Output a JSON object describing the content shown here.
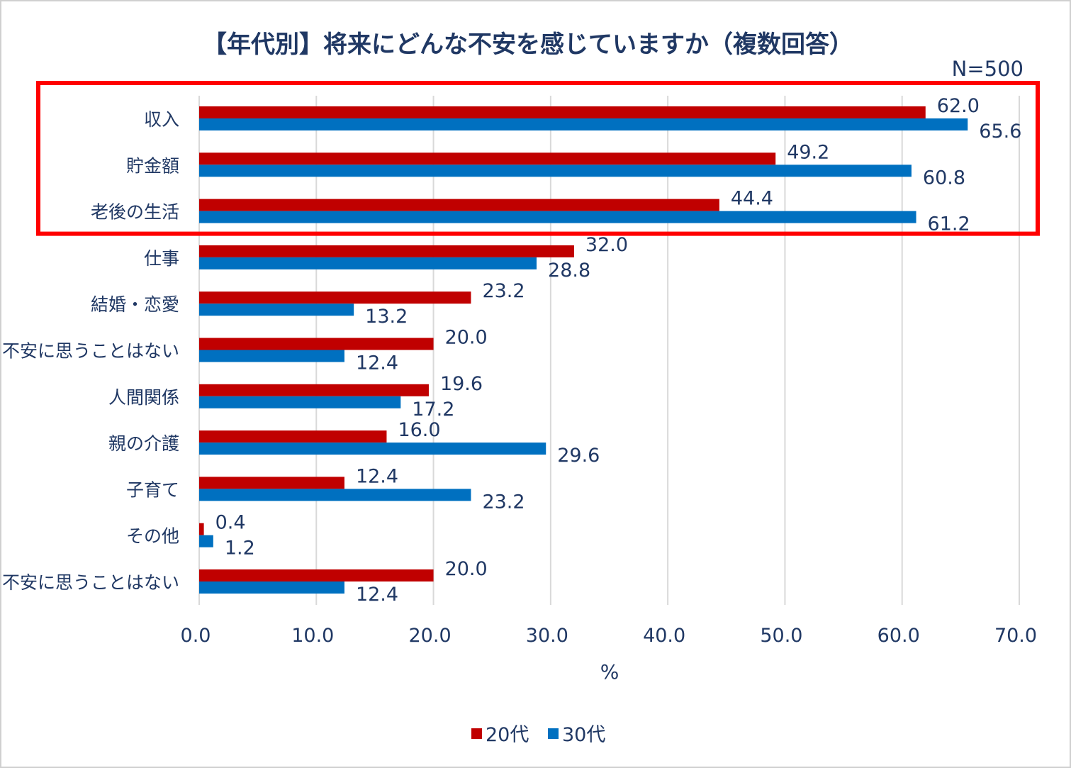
{
  "chart_data": {
    "type": "bar",
    "orientation": "horizontal",
    "title": "【年代別】将来にどんな不安を感じていますか（複数回答）",
    "subtitle": "N=500",
    "xlabel": "%",
    "ylabel": "",
    "xlim": [
      0,
      70
    ],
    "xticks": [
      "0.0",
      "10.0",
      "20.0",
      "30.0",
      "40.0",
      "50.0",
      "60.0",
      "70.0"
    ],
    "grid": true,
    "legend_position": "bottom",
    "categories": [
      "収入",
      "貯金額",
      "老後の生活",
      "仕事",
      "結婚・恋愛",
      "不安に思うことはない",
      "人間関係",
      "親の介護",
      "子育て",
      "その他",
      "不安に思うことはない"
    ],
    "series": [
      {
        "name": "20代",
        "color": "#C00000",
        "values": [
          62.0,
          49.2,
          44.4,
          32.0,
          23.2,
          20.0,
          19.6,
          16.0,
          12.4,
          0.4,
          20.0
        ]
      },
      {
        "name": "30代",
        "color": "#0070C0",
        "values": [
          65.6,
          60.8,
          61.2,
          28.8,
          13.2,
          12.4,
          17.2,
          29.6,
          23.2,
          1.2,
          12.4
        ]
      }
    ],
    "highlight": {
      "categories": [
        "収入",
        "貯金額",
        "老後の生活"
      ],
      "color": "#FF0000"
    }
  }
}
